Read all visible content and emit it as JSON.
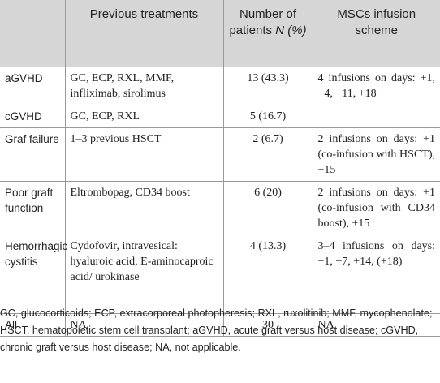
{
  "table": {
    "header": [
      "",
      "Previous treatments",
      [
        "Number of patients ",
        "N",
        " (%)"
      ],
      "MSCs infusion scheme"
    ],
    "rows": [
      [
        "aGVHD",
        "GC, ECP, RXL, MMF, infliximab, sirolimus",
        "13 (43.3)",
        "4 infusions on days: +1, +4, +11, +18"
      ],
      [
        "cGVHD",
        "GC, ECP, RXL",
        "5 (16.7)",
        ""
      ],
      [
        "Graf failure",
        "1–3 previous HSCT",
        "2 (6.7)",
        "2 infusions on days: +1 (co-infusion with HSCT), +15"
      ],
      [
        "Poor graft function",
        "Eltrombopag, CD34 boost",
        "6 (20)",
        "2 infusions on days: +1 (co-infusion with CD34 boost), +15"
      ],
      [
        "Hemorrhagic cystitis",
        "Cydofovir, intravesical: hyaluroic acid, E-aminocaproic acid/ urokinase",
        "4 (13.3)",
        "3–4 infusions on days: +1, +7, +14, (+18)"
      ],
      [
        "All",
        "NA",
        "30",
        "NA"
      ]
    ]
  },
  "footnote": "GC, glucocorticoids; ECP, extracorporeal photopheresis; RXL, ruxolitinib; MMF, mycophenolate; HSCT, hematopoietic stem cell transplant; aGVHD, acute graft versus host disease; cGVHD, chronic graft versus host disease; NA, not applicable."
}
